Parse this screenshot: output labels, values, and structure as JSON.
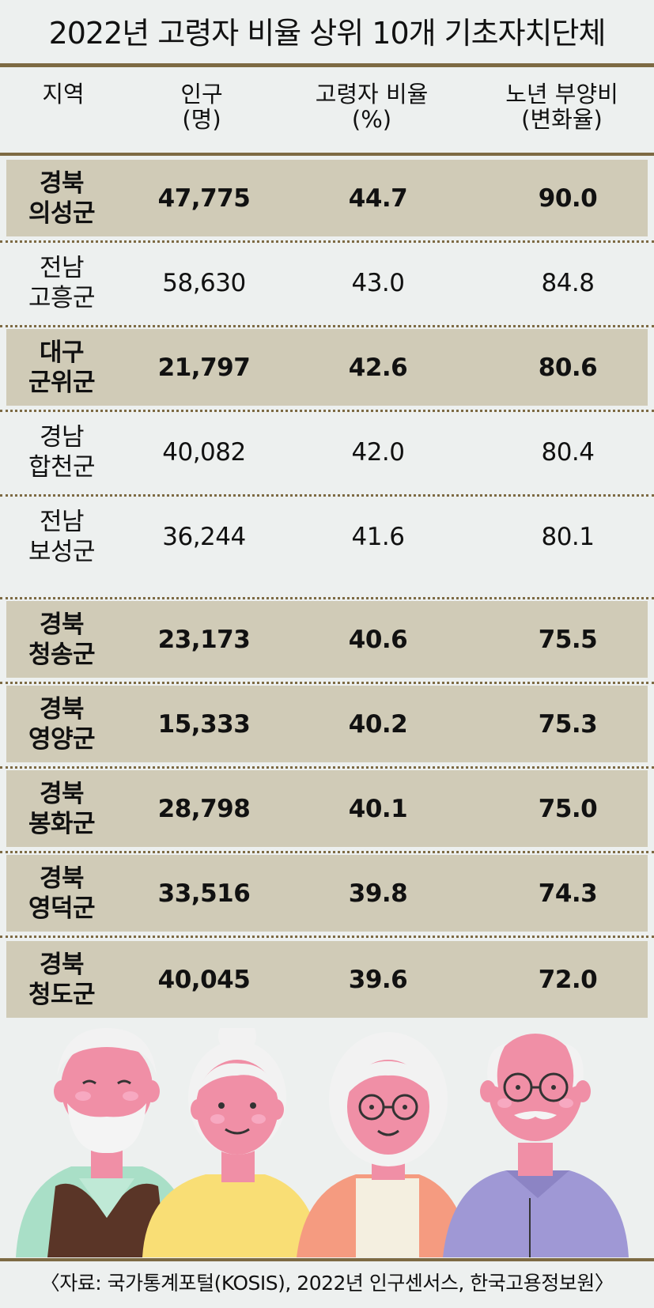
{
  "title": "2022년 고령자 비율 상위 10개 기초자치단체",
  "header": {
    "region": "지역",
    "population": "인구",
    "population_unit": "(명)",
    "elderly_ratio": "고령자 비율",
    "elderly_ratio_unit": "(%)",
    "dependency": "노년 부양비",
    "dependency_unit": "(변화율)"
  },
  "rows": [
    {
      "province": "경북",
      "county": "의성군",
      "population": "47,775",
      "ratio": "44.7",
      "dependency": "90.0",
      "highlight": true
    },
    {
      "province": "전남",
      "county": "고흥군",
      "population": "58,630",
      "ratio": "43.0",
      "dependency": "84.8",
      "highlight": false
    },
    {
      "province": "대구",
      "county": "군위군",
      "population": "21,797",
      "ratio": "42.6",
      "dependency": "80.6",
      "highlight": true
    },
    {
      "province": "경남",
      "county": "합천군",
      "population": "40,082",
      "ratio": "42.0",
      "dependency": "80.4",
      "highlight": false
    },
    {
      "province": "전남",
      "county": "보성군",
      "population": "36,244",
      "ratio": "41.6",
      "dependency": "80.1",
      "highlight": false
    },
    {
      "province": "경북",
      "county": "청송군",
      "population": "23,173",
      "ratio": "40.6",
      "dependency": "75.5",
      "highlight": true
    },
    {
      "province": "경북",
      "county": "영양군",
      "population": "15,333",
      "ratio": "40.2",
      "dependency": "75.3",
      "highlight": true
    },
    {
      "province": "경북",
      "county": "봉화군",
      "population": "28,798",
      "ratio": "40.1",
      "dependency": "75.0",
      "highlight": true
    },
    {
      "province": "경북",
      "county": "영덕군",
      "population": "33,516",
      "ratio": "39.8",
      "dependency": "74.3",
      "highlight": true
    },
    {
      "province": "경북",
      "county": "청도군",
      "population": "40,045",
      "ratio": "39.6",
      "dependency": "72.0",
      "highlight": true
    }
  ],
  "source": "〈자료: 국가통계포털(KOSIS), 2022년 인구센서스, 한국고용정보원〉",
  "colors": {
    "background": "#edf0ef",
    "highlight_row": "#d0cbb7",
    "rule": "#7d6a43",
    "skin": "#f08fa6"
  },
  "illustration": "four-elderly-people-illustration"
}
